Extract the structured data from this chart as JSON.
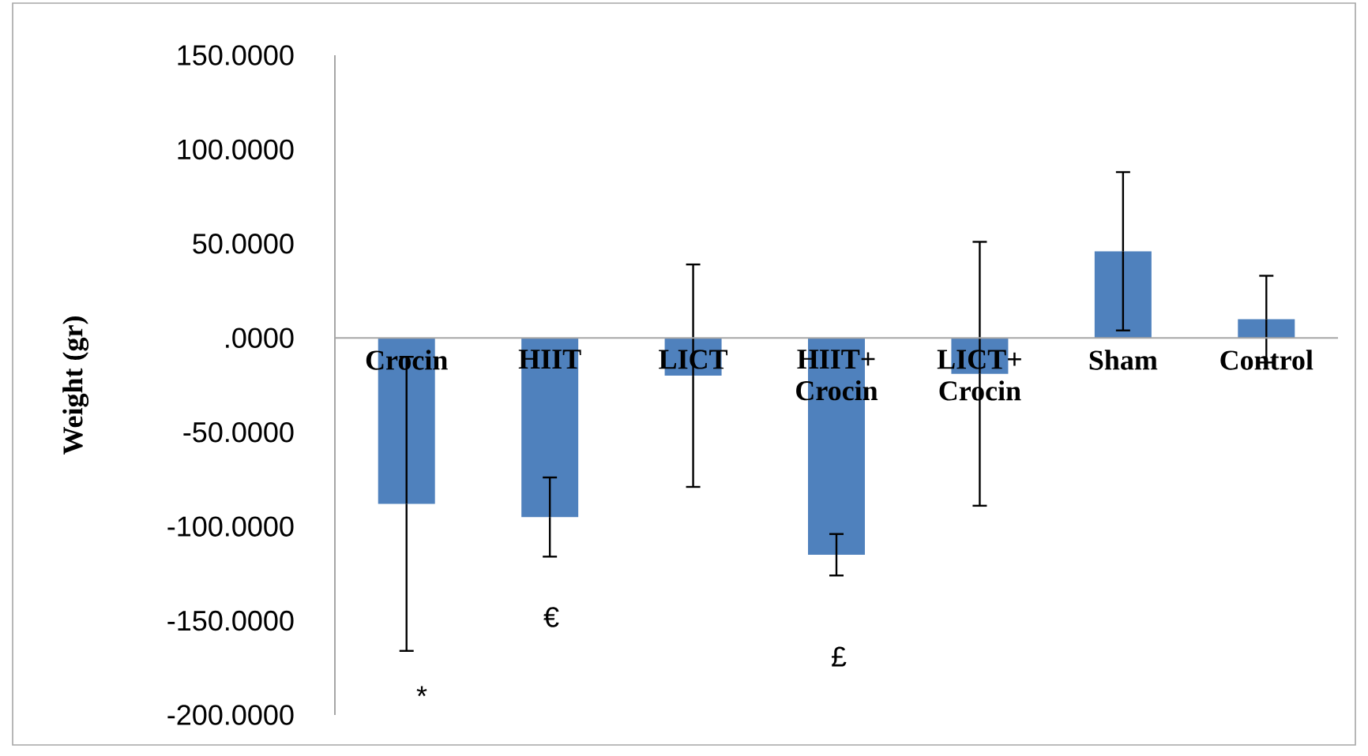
{
  "chart_data": {
    "type": "bar",
    "ylabel": "Weight (gr)",
    "categories": [
      "Crocin",
      "HIIT",
      "LICT",
      "HIIT+ Crocin",
      "LICT+ Crocin",
      "Sham",
      "Control"
    ],
    "values": [
      -88,
      -95,
      -20,
      -115,
      -19,
      46,
      10
    ],
    "errors": [
      78,
      21,
      59,
      11,
      70,
      42,
      23
    ],
    "color": "#4f81bd",
    "ylim": [
      -200,
      150
    ],
    "yticks": [
      {
        "value": -200,
        "label": "-200.0000"
      },
      {
        "value": -150,
        "label": "-150.0000"
      },
      {
        "value": -100,
        "label": "-100.0000"
      },
      {
        "value": -50,
        "label": "-50.0000"
      },
      {
        "value": 0,
        "label": ".0000"
      },
      {
        "value": 50,
        "label": "50.0000"
      },
      {
        "value": 100,
        "label": "100.0000"
      },
      {
        "value": 150,
        "label": "150.0000"
      }
    ],
    "annotations": [
      "*",
      "€",
      "£"
    ],
    "grid": false
  }
}
